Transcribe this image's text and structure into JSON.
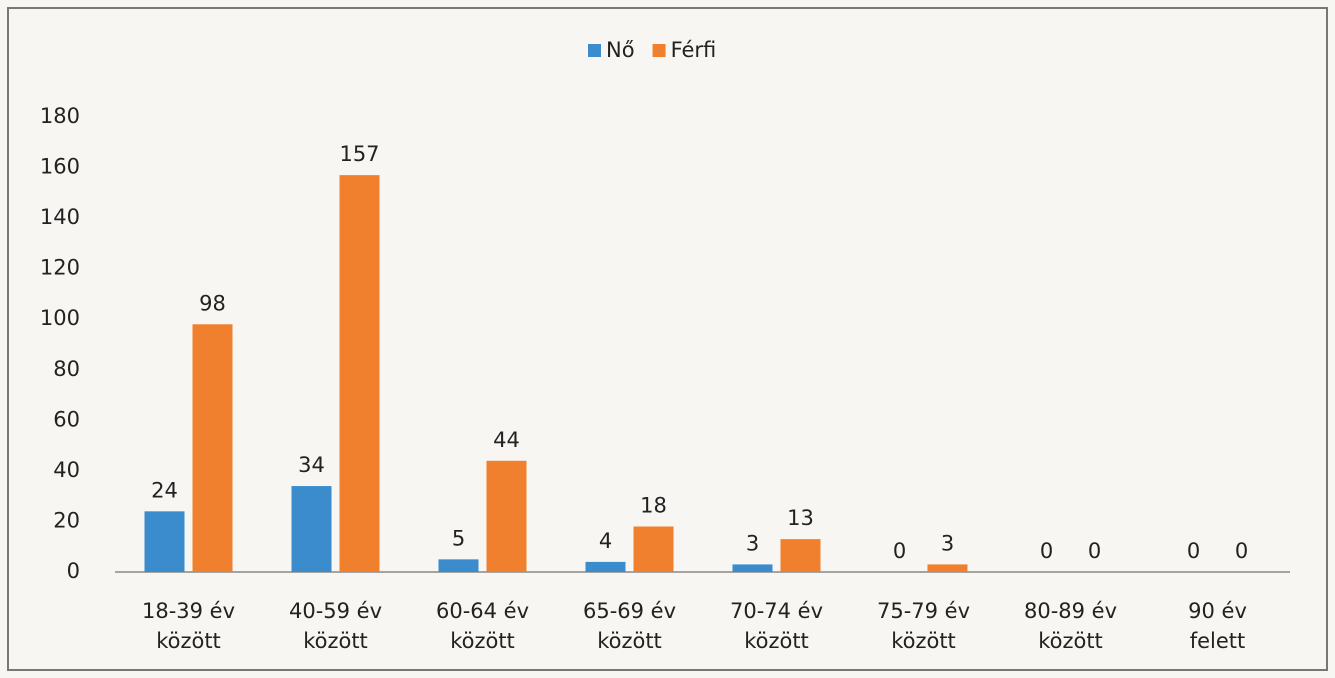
{
  "chart_data": {
    "type": "bar",
    "categories": [
      "18-39 év\nközött",
      "40-59 év\nközött",
      "60-64 év\nközött",
      "65-69 év\nközött",
      "70-74 év\nközött",
      "75-79 év\nközött",
      "80-89 év\nközött",
      "90 év\nfelett"
    ],
    "series": [
      {
        "name": "Nő",
        "color": "#3a8ccc",
        "values": [
          24,
          34,
          5,
          4,
          3,
          0,
          0,
          0
        ]
      },
      {
        "name": "Férfi",
        "color": "#f07f2e",
        "values": [
          98,
          157,
          44,
          18,
          13,
          3,
          0,
          0
        ]
      }
    ],
    "ylim": [
      0,
      180
    ],
    "yticks": [
      0,
      20,
      40,
      60,
      80,
      100,
      120,
      140,
      160,
      180
    ],
    "legend": "top",
    "grid": false
  }
}
